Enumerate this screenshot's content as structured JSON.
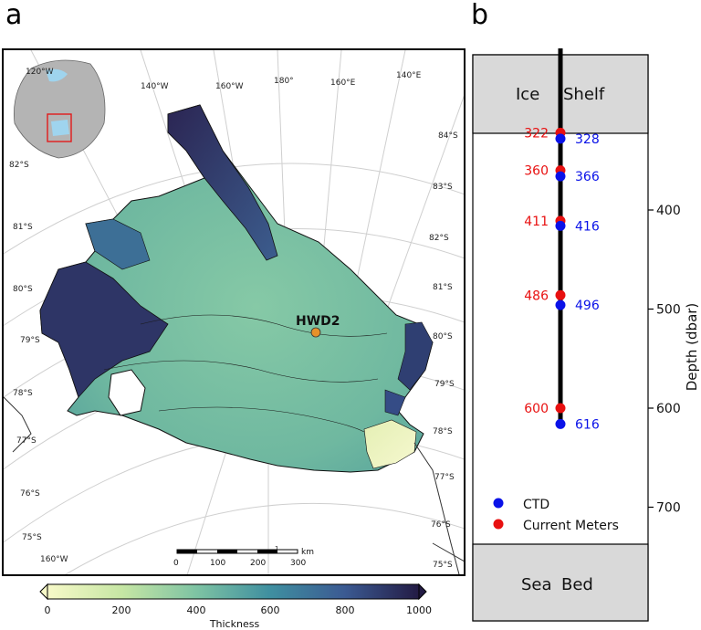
{
  "panel_a": {
    "label": "a",
    "longitudes": [
      "120°W",
      "140°W",
      "160°W",
      "180°",
      "160°E",
      "140°E"
    ],
    "latitudes_left": [
      "82°S",
      "81°S",
      "80°S",
      "79°S",
      "78°S",
      "77°S",
      "76°S",
      "75°S"
    ],
    "latitudes_right": [
      "84°S",
      "83°S",
      "82°S",
      "81°S",
      "80°S",
      "79°S",
      "78°S",
      "77°S",
      "76°S",
      "75°S"
    ],
    "bottom_lon": "160°W",
    "bottom_lon_small": "1",
    "site": {
      "label": "HWD2",
      "color": "#e6912a"
    },
    "scalebar": {
      "unit": "km",
      "ticks": [
        "0",
        "100",
        "200",
        "300"
      ]
    },
    "colorbar": {
      "label": "Thickness",
      "ticks": [
        "0",
        "200",
        "400",
        "600",
        "800",
        "1000"
      ]
    },
    "colors": {
      "thin": "#f3f6c2",
      "mid": "#7ec3a3",
      "thick": "#2b2553"
    }
  },
  "panel_b": {
    "label": "b",
    "top_box": [
      "Ice",
      "Shelf"
    ],
    "bottom_box": [
      "Sea",
      "Bed"
    ],
    "axis_label": "Depth (dbar)",
    "axis_ticks": [
      "400",
      "500",
      "600",
      "700"
    ],
    "ctd_depths": [
      "328",
      "366",
      "416",
      "496",
      "616"
    ],
    "meter_depths": [
      "322",
      "360",
      "411",
      "486",
      "600"
    ],
    "legend": {
      "ctd": "CTD",
      "meters": "Current Meters"
    },
    "colors": {
      "ctd": "#0a12e8",
      "meters": "#e81010",
      "box": "#d9d9d9"
    }
  }
}
